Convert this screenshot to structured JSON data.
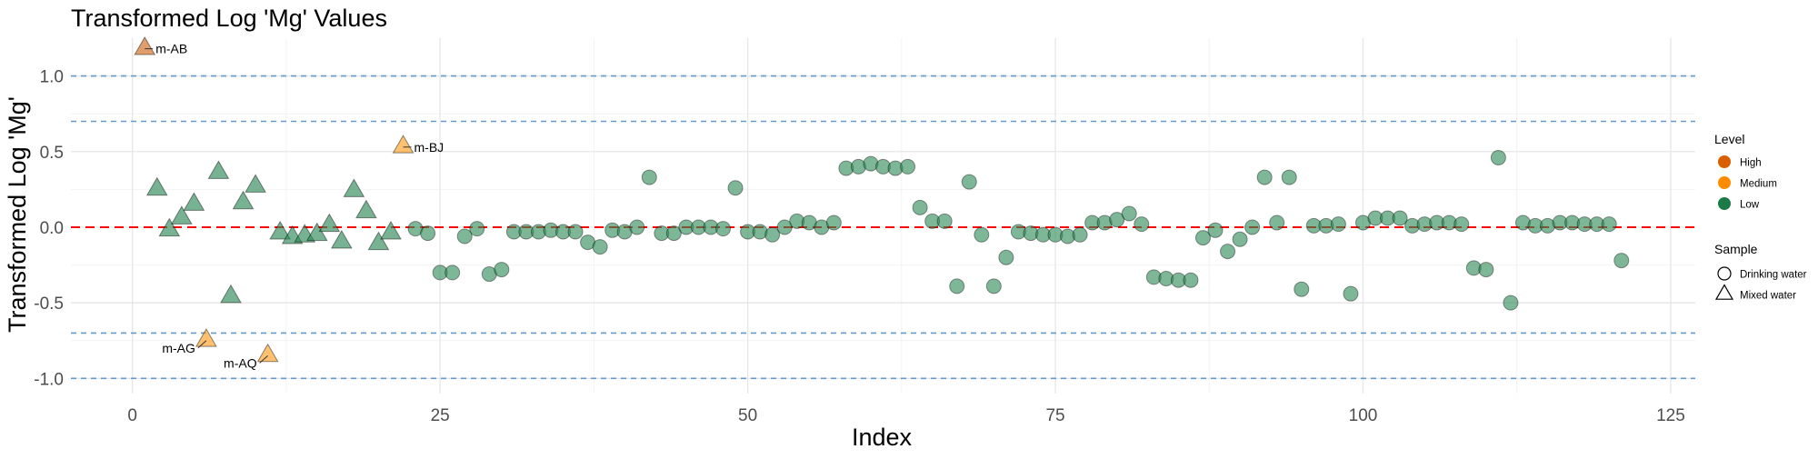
{
  "chart_data": {
    "type": "scatter",
    "title": "Transformed Log 'Mg' Values",
    "xlabel": "Index",
    "ylabel": "Transformed Log 'Mg'",
    "xlim": [
      -5,
      127
    ],
    "ylim": [
      -1.1,
      1.25
    ],
    "x_ticks": [
      0,
      25,
      50,
      75,
      100,
      125
    ],
    "y_ticks": [
      -1.0,
      -0.5,
      0.0,
      0.5,
      1.0
    ],
    "x_tick_labels": [
      "0",
      "25",
      "50",
      "75",
      "100",
      "125"
    ],
    "y_tick_labels": [
      "-1.0",
      "-0.5",
      "0.0",
      "0.5",
      "1.0"
    ],
    "grid": true,
    "reference_lines": [
      {
        "y": 0.0,
        "color": "#ff0000",
        "style": "dashed"
      },
      {
        "y": 0.7,
        "color": "#6699cc",
        "style": "dashed"
      },
      {
        "y": -0.7,
        "color": "#6699cc",
        "style": "dashed"
      },
      {
        "y": 1.0,
        "color": "#6699cc",
        "style": "dashed"
      },
      {
        "y": -1.0,
        "color": "#6699cc",
        "style": "dashed"
      }
    ],
    "legend": {
      "placement": "right",
      "level_title": "Level",
      "level_items": [
        {
          "label": "High",
          "color": "#d95f02"
        },
        {
          "label": "Medium",
          "color": "#ff8c00"
        },
        {
          "label": "Low",
          "color": "#1b7a46"
        }
      ],
      "sample_title": "Sample",
      "sample_items": [
        {
          "label": "Drinking water",
          "shape": "circle"
        },
        {
          "label": "Mixed water",
          "shape": "triangle"
        }
      ]
    },
    "level_colors": {
      "High": "#d2691e",
      "Medium": "#ffa024",
      "Low": "#2e8b57"
    },
    "points": [
      {
        "x": 1,
        "y": 1.18,
        "level": "High",
        "sample": "Mixed water",
        "label": "m-AB"
      },
      {
        "x": 2,
        "y": 0.25,
        "level": "Low",
        "sample": "Mixed water"
      },
      {
        "x": 3,
        "y": -0.02,
        "level": "Low",
        "sample": "Mixed water"
      },
      {
        "x": 4,
        "y": 0.06,
        "level": "Low",
        "sample": "Mixed water"
      },
      {
        "x": 5,
        "y": 0.15,
        "level": "Low",
        "sample": "Mixed water"
      },
      {
        "x": 6,
        "y": -0.75,
        "level": "Medium",
        "sample": "Mixed water",
        "label": "m-AG"
      },
      {
        "x": 7,
        "y": 0.36,
        "level": "Low",
        "sample": "Mixed water"
      },
      {
        "x": 8,
        "y": -0.46,
        "level": "Low",
        "sample": "Mixed water"
      },
      {
        "x": 9,
        "y": 0.16,
        "level": "Low",
        "sample": "Mixed water"
      },
      {
        "x": 10,
        "y": 0.27,
        "level": "Low",
        "sample": "Mixed water"
      },
      {
        "x": 11,
        "y": -0.85,
        "level": "Medium",
        "sample": "Mixed water",
        "label": "m-AQ"
      },
      {
        "x": 12,
        "y": -0.04,
        "level": "Low",
        "sample": "Mixed water"
      },
      {
        "x": 13,
        "y": -0.07,
        "level": "Low",
        "sample": "Mixed water"
      },
      {
        "x": 14,
        "y": -0.06,
        "level": "Low",
        "sample": "Mixed water"
      },
      {
        "x": 15,
        "y": -0.05,
        "level": "Low",
        "sample": "Mixed water"
      },
      {
        "x": 16,
        "y": 0.01,
        "level": "Low",
        "sample": "Mixed water"
      },
      {
        "x": 17,
        "y": -0.1,
        "level": "Low",
        "sample": "Mixed water"
      },
      {
        "x": 18,
        "y": 0.24,
        "level": "Low",
        "sample": "Mixed water"
      },
      {
        "x": 19,
        "y": 0.1,
        "level": "Low",
        "sample": "Mixed water"
      },
      {
        "x": 20,
        "y": -0.11,
        "level": "Low",
        "sample": "Mixed water"
      },
      {
        "x": 21,
        "y": -0.04,
        "level": "Low",
        "sample": "Mixed water"
      },
      {
        "x": 22,
        "y": 0.53,
        "level": "Medium",
        "sample": "Mixed water",
        "label": "m-BJ"
      },
      {
        "x": 23,
        "y": -0.01,
        "level": "Low",
        "sample": "Drinking water"
      },
      {
        "x": 24,
        "y": -0.04,
        "level": "Low",
        "sample": "Drinking water"
      },
      {
        "x": 25,
        "y": -0.3,
        "level": "Low",
        "sample": "Drinking water"
      },
      {
        "x": 26,
        "y": -0.3,
        "level": "Low",
        "sample": "Drinking water"
      },
      {
        "x": 27,
        "y": -0.06,
        "level": "Low",
        "sample": "Drinking water"
      },
      {
        "x": 28,
        "y": -0.01,
        "level": "Low",
        "sample": "Drinking water"
      },
      {
        "x": 29,
        "y": -0.31,
        "level": "Low",
        "sample": "Drinking water"
      },
      {
        "x": 30,
        "y": -0.28,
        "level": "Low",
        "sample": "Drinking water"
      },
      {
        "x": 31,
        "y": -0.03,
        "level": "Low",
        "sample": "Drinking water"
      },
      {
        "x": 32,
        "y": -0.03,
        "level": "Low",
        "sample": "Drinking water"
      },
      {
        "x": 33,
        "y": -0.03,
        "level": "Low",
        "sample": "Drinking water"
      },
      {
        "x": 34,
        "y": -0.02,
        "level": "Low",
        "sample": "Drinking water"
      },
      {
        "x": 35,
        "y": -0.03,
        "level": "Low",
        "sample": "Drinking water"
      },
      {
        "x": 36,
        "y": -0.03,
        "level": "Low",
        "sample": "Drinking water"
      },
      {
        "x": 37,
        "y": -0.1,
        "level": "Low",
        "sample": "Drinking water"
      },
      {
        "x": 38,
        "y": -0.13,
        "level": "Low",
        "sample": "Drinking water"
      },
      {
        "x": 39,
        "y": -0.02,
        "level": "Low",
        "sample": "Drinking water"
      },
      {
        "x": 40,
        "y": -0.03,
        "level": "Low",
        "sample": "Drinking water"
      },
      {
        "x": 41,
        "y": 0.0,
        "level": "Low",
        "sample": "Drinking water"
      },
      {
        "x": 42,
        "y": 0.33,
        "level": "Low",
        "sample": "Drinking water"
      },
      {
        "x": 43,
        "y": -0.04,
        "level": "Low",
        "sample": "Drinking water"
      },
      {
        "x": 44,
        "y": -0.04,
        "level": "Low",
        "sample": "Drinking water"
      },
      {
        "x": 45,
        "y": 0.0,
        "level": "Low",
        "sample": "Drinking water"
      },
      {
        "x": 46,
        "y": 0.0,
        "level": "Low",
        "sample": "Drinking water"
      },
      {
        "x": 47,
        "y": 0.0,
        "level": "Low",
        "sample": "Drinking water"
      },
      {
        "x": 48,
        "y": -0.01,
        "level": "Low",
        "sample": "Drinking water"
      },
      {
        "x": 49,
        "y": 0.26,
        "level": "Low",
        "sample": "Drinking water"
      },
      {
        "x": 50,
        "y": -0.03,
        "level": "Low",
        "sample": "Drinking water"
      },
      {
        "x": 51,
        "y": -0.03,
        "level": "Low",
        "sample": "Drinking water"
      },
      {
        "x": 52,
        "y": -0.05,
        "level": "Low",
        "sample": "Drinking water"
      },
      {
        "x": 53,
        "y": 0.0,
        "level": "Low",
        "sample": "Drinking water"
      },
      {
        "x": 54,
        "y": 0.04,
        "level": "Low",
        "sample": "Drinking water"
      },
      {
        "x": 55,
        "y": 0.03,
        "level": "Low",
        "sample": "Drinking water"
      },
      {
        "x": 56,
        "y": 0.0,
        "level": "Low",
        "sample": "Drinking water"
      },
      {
        "x": 57,
        "y": 0.03,
        "level": "Low",
        "sample": "Drinking water"
      },
      {
        "x": 58,
        "y": 0.39,
        "level": "Low",
        "sample": "Drinking water"
      },
      {
        "x": 59,
        "y": 0.4,
        "level": "Low",
        "sample": "Drinking water"
      },
      {
        "x": 60,
        "y": 0.42,
        "level": "Low",
        "sample": "Drinking water"
      },
      {
        "x": 61,
        "y": 0.4,
        "level": "Low",
        "sample": "Drinking water"
      },
      {
        "x": 62,
        "y": 0.39,
        "level": "Low",
        "sample": "Drinking water"
      },
      {
        "x": 63,
        "y": 0.4,
        "level": "Low",
        "sample": "Drinking water"
      },
      {
        "x": 64,
        "y": 0.13,
        "level": "Low",
        "sample": "Drinking water"
      },
      {
        "x": 65,
        "y": 0.04,
        "level": "Low",
        "sample": "Drinking water"
      },
      {
        "x": 66,
        "y": 0.04,
        "level": "Low",
        "sample": "Drinking water"
      },
      {
        "x": 67,
        "y": -0.39,
        "level": "Low",
        "sample": "Drinking water"
      },
      {
        "x": 68,
        "y": 0.3,
        "level": "Low",
        "sample": "Drinking water"
      },
      {
        "x": 69,
        "y": -0.05,
        "level": "Low",
        "sample": "Drinking water"
      },
      {
        "x": 70,
        "y": -0.39,
        "level": "Low",
        "sample": "Drinking water"
      },
      {
        "x": 71,
        "y": -0.2,
        "level": "Low",
        "sample": "Drinking water"
      },
      {
        "x": 72,
        "y": -0.03,
        "level": "Low",
        "sample": "Drinking water"
      },
      {
        "x": 73,
        "y": -0.04,
        "level": "Low",
        "sample": "Drinking water"
      },
      {
        "x": 74,
        "y": -0.05,
        "level": "Low",
        "sample": "Drinking water"
      },
      {
        "x": 75,
        "y": -0.05,
        "level": "Low",
        "sample": "Drinking water"
      },
      {
        "x": 76,
        "y": -0.06,
        "level": "Low",
        "sample": "Drinking water"
      },
      {
        "x": 77,
        "y": -0.05,
        "level": "Low",
        "sample": "Drinking water"
      },
      {
        "x": 78,
        "y": 0.03,
        "level": "Low",
        "sample": "Drinking water"
      },
      {
        "x": 79,
        "y": 0.03,
        "level": "Low",
        "sample": "Drinking water"
      },
      {
        "x": 80,
        "y": 0.05,
        "level": "Low",
        "sample": "Drinking water"
      },
      {
        "x": 81,
        "y": 0.09,
        "level": "Low",
        "sample": "Drinking water"
      },
      {
        "x": 82,
        "y": 0.02,
        "level": "Low",
        "sample": "Drinking water"
      },
      {
        "x": 83,
        "y": -0.33,
        "level": "Low",
        "sample": "Drinking water"
      },
      {
        "x": 84,
        "y": -0.34,
        "level": "Low",
        "sample": "Drinking water"
      },
      {
        "x": 85,
        "y": -0.35,
        "level": "Low",
        "sample": "Drinking water"
      },
      {
        "x": 86,
        "y": -0.35,
        "level": "Low",
        "sample": "Drinking water"
      },
      {
        "x": 87,
        "y": -0.07,
        "level": "Low",
        "sample": "Drinking water"
      },
      {
        "x": 88,
        "y": -0.02,
        "level": "Low",
        "sample": "Drinking water"
      },
      {
        "x": 89,
        "y": -0.16,
        "level": "Low",
        "sample": "Drinking water"
      },
      {
        "x": 90,
        "y": -0.08,
        "level": "Low",
        "sample": "Drinking water"
      },
      {
        "x": 91,
        "y": 0.0,
        "level": "Low",
        "sample": "Drinking water"
      },
      {
        "x": 92,
        "y": 0.33,
        "level": "Low",
        "sample": "Drinking water"
      },
      {
        "x": 93,
        "y": 0.03,
        "level": "Low",
        "sample": "Drinking water"
      },
      {
        "x": 94,
        "y": 0.33,
        "level": "Low",
        "sample": "Drinking water"
      },
      {
        "x": 95,
        "y": -0.41,
        "level": "Low",
        "sample": "Drinking water"
      },
      {
        "x": 96,
        "y": 0.01,
        "level": "Low",
        "sample": "Drinking water"
      },
      {
        "x": 97,
        "y": 0.01,
        "level": "Low",
        "sample": "Drinking water"
      },
      {
        "x": 98,
        "y": 0.02,
        "level": "Low",
        "sample": "Drinking water"
      },
      {
        "x": 99,
        "y": -0.44,
        "level": "Low",
        "sample": "Drinking water"
      },
      {
        "x": 100,
        "y": 0.03,
        "level": "Low",
        "sample": "Drinking water"
      },
      {
        "x": 101,
        "y": 0.06,
        "level": "Low",
        "sample": "Drinking water"
      },
      {
        "x": 102,
        "y": 0.06,
        "level": "Low",
        "sample": "Drinking water"
      },
      {
        "x": 103,
        "y": 0.06,
        "level": "Low",
        "sample": "Drinking water"
      },
      {
        "x": 104,
        "y": 0.01,
        "level": "Low",
        "sample": "Drinking water"
      },
      {
        "x": 105,
        "y": 0.02,
        "level": "Low",
        "sample": "Drinking water"
      },
      {
        "x": 106,
        "y": 0.03,
        "level": "Low",
        "sample": "Drinking water"
      },
      {
        "x": 107,
        "y": 0.03,
        "level": "Low",
        "sample": "Drinking water"
      },
      {
        "x": 108,
        "y": 0.02,
        "level": "Low",
        "sample": "Drinking water"
      },
      {
        "x": 109,
        "y": -0.27,
        "level": "Low",
        "sample": "Drinking water"
      },
      {
        "x": 110,
        "y": -0.28,
        "level": "Low",
        "sample": "Drinking water"
      },
      {
        "x": 111,
        "y": 0.46,
        "level": "Low",
        "sample": "Drinking water"
      },
      {
        "x": 112,
        "y": -0.5,
        "level": "Low",
        "sample": "Drinking water"
      },
      {
        "x": 113,
        "y": 0.03,
        "level": "Low",
        "sample": "Drinking water"
      },
      {
        "x": 114,
        "y": 0.01,
        "level": "Low",
        "sample": "Drinking water"
      },
      {
        "x": 115,
        "y": 0.01,
        "level": "Low",
        "sample": "Drinking water"
      },
      {
        "x": 116,
        "y": 0.03,
        "level": "Low",
        "sample": "Drinking water"
      },
      {
        "x": 117,
        "y": 0.03,
        "level": "Low",
        "sample": "Drinking water"
      },
      {
        "x": 118,
        "y": 0.02,
        "level": "Low",
        "sample": "Drinking water"
      },
      {
        "x": 119,
        "y": 0.02,
        "level": "Low",
        "sample": "Drinking water"
      },
      {
        "x": 120,
        "y": 0.02,
        "level": "Low",
        "sample": "Drinking water"
      },
      {
        "x": 121,
        "y": -0.22,
        "level": "Low",
        "sample": "Drinking water"
      }
    ]
  }
}
